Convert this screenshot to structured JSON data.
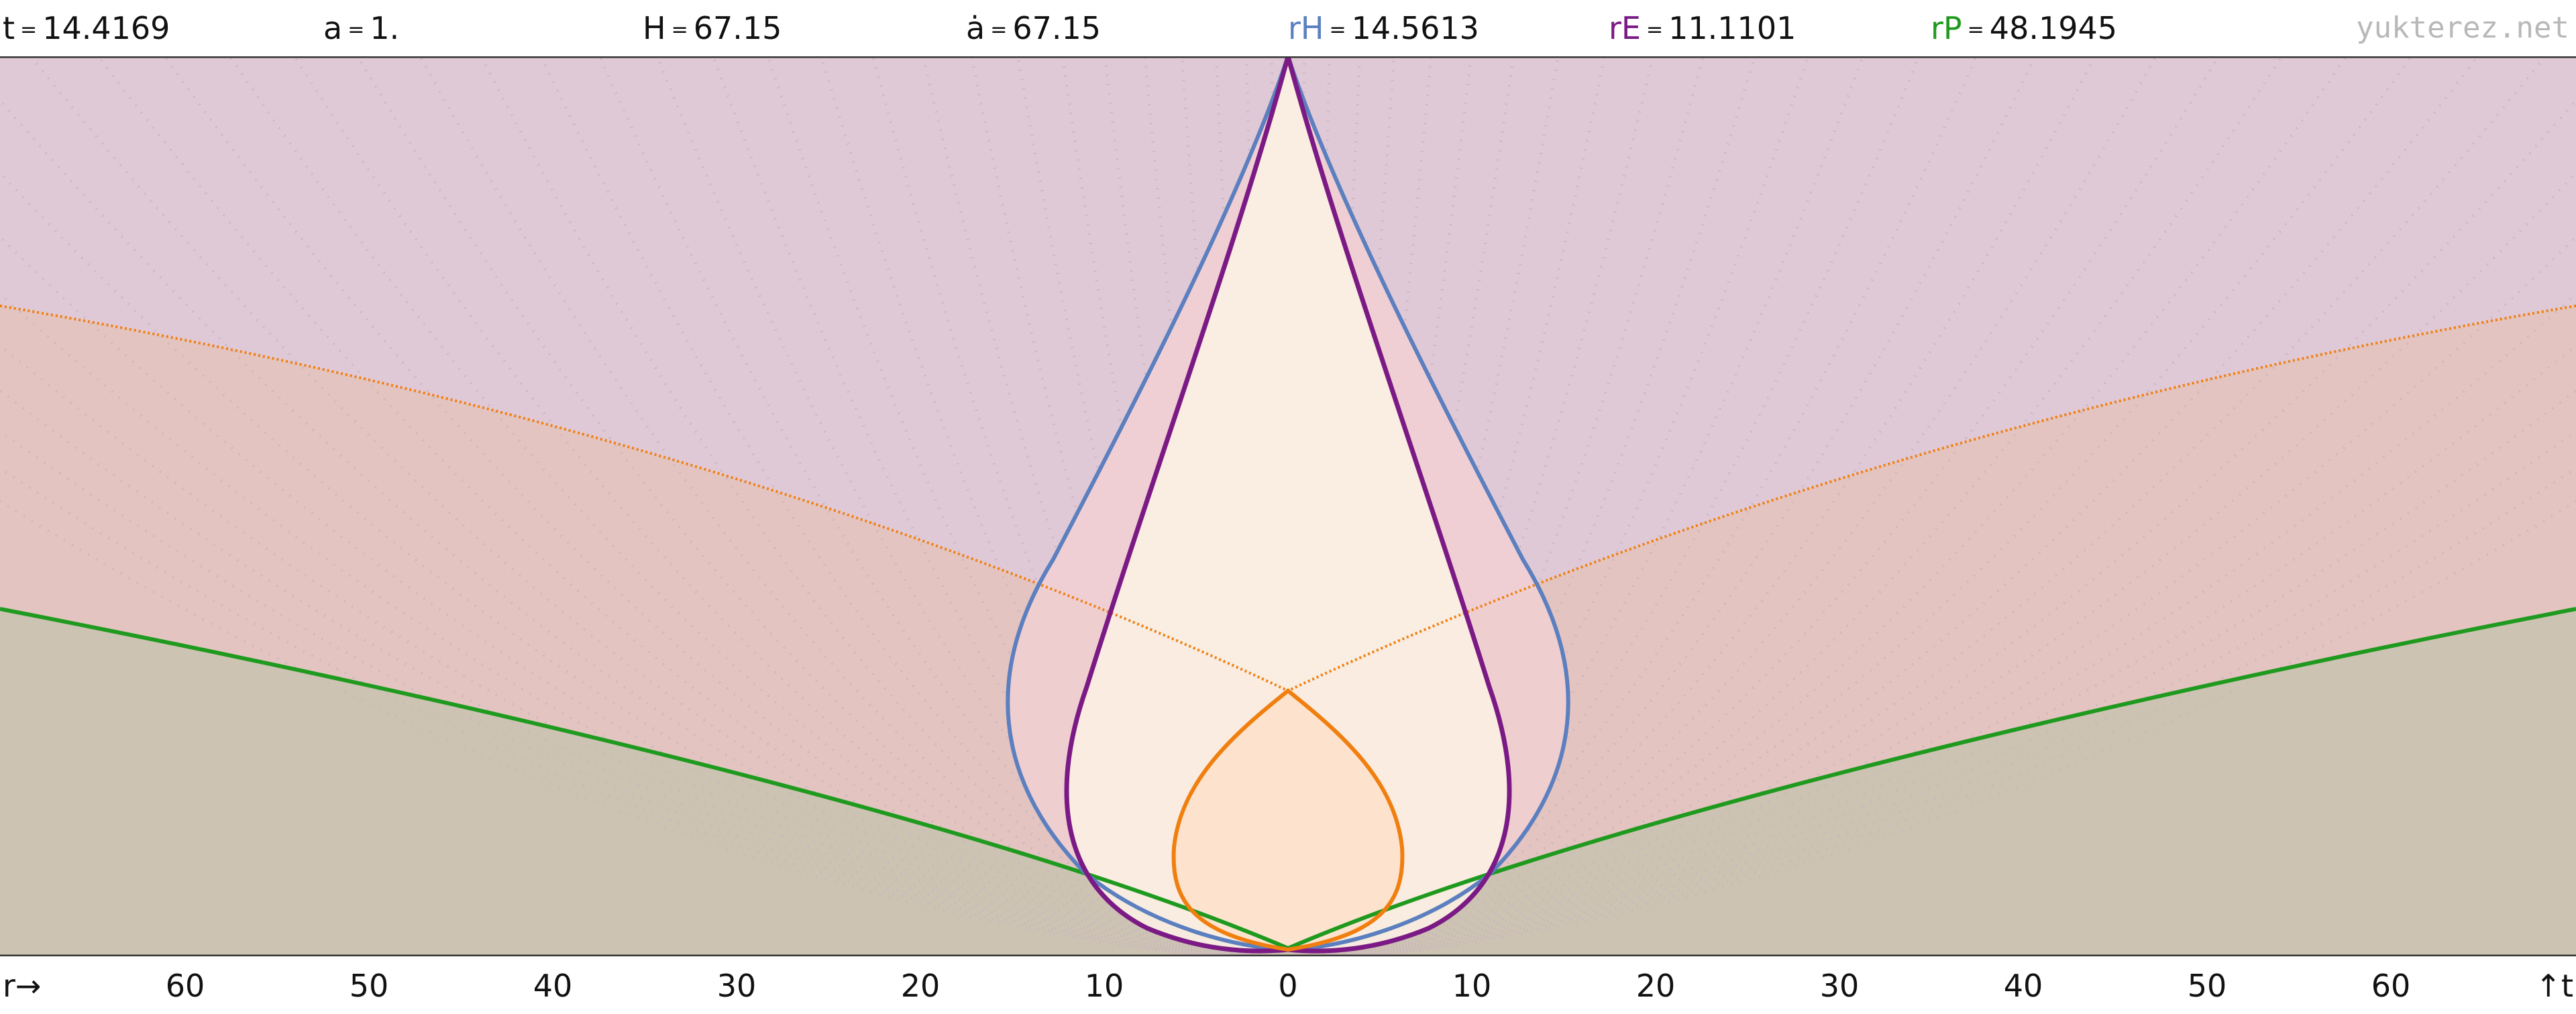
{
  "header": {
    "t": {
      "label": "t",
      "value": "14.4169"
    },
    "a": {
      "label": "a",
      "value": "1."
    },
    "H": {
      "label": "H",
      "value": "67.15"
    },
    "adot": {
      "label": "ȧ",
      "value": "67.15"
    },
    "rH": {
      "label": "rH",
      "value": "14.5613",
      "color": "#5b7fbf"
    },
    "rE": {
      "label": "rE",
      "value": "11.1101",
      "color": "#7b1a85"
    },
    "rP": {
      "label": "rP",
      "value": "48.1945",
      "color": "#1f9a1f"
    },
    "eq": "=",
    "watermark": "yukterez.net"
  },
  "axis": {
    "r_label": "r→",
    "t_label": "↑t",
    "ticks": [
      "60",
      "50",
      "40",
      "30",
      "20",
      "10",
      "0",
      "10",
      "20",
      "30",
      "40",
      "50",
      "60"
    ]
  },
  "colors": {
    "hubble": "#5b7fbf",
    "event": "#7b1a85",
    "particle": "#1f9a1f",
    "lightcone": "#f07f10",
    "fill_top": "#e0c9d6",
    "fill_mid": "#e3c4c0",
    "fill_bottom": "#cdc3b2",
    "fill_hubble": "#f1d0d2",
    "fill_event": "#fbefe2"
  }
}
